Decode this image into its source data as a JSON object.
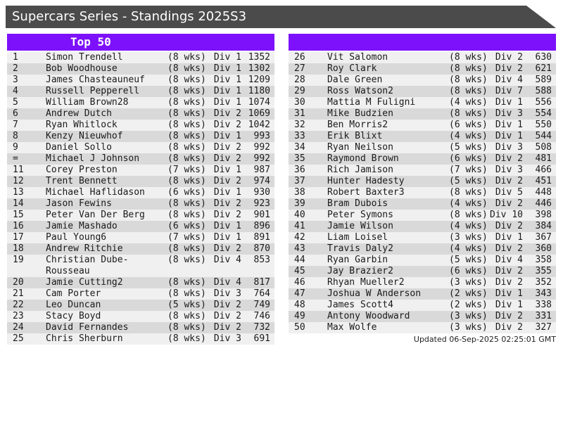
{
  "title_bar": {
    "title": "Supercars Series - Standings 2025S3"
  },
  "panels": {
    "left": {
      "header_label": "Top 50",
      "rows": [
        {
          "rank": "1",
          "name": "Simon Trendell",
          "weeks": "(8 wks)",
          "division": "Div 1",
          "points": "1352"
        },
        {
          "rank": "2",
          "name": "Bob Woodhouse",
          "weeks": "(8 wks)",
          "division": "Div 1",
          "points": "1302"
        },
        {
          "rank": "3",
          "name": "James Chasteauneuf",
          "weeks": "(8 wks)",
          "division": "Div 1",
          "points": "1209"
        },
        {
          "rank": "4",
          "name": "Russell Pepperell",
          "weeks": "(8 wks)",
          "division": "Div 1",
          "points": "1180"
        },
        {
          "rank": "5",
          "name": "William Brown28",
          "weeks": "(8 wks)",
          "division": "Div 1",
          "points": "1074"
        },
        {
          "rank": "6",
          "name": "Andrew Dutch",
          "weeks": "(8 wks)",
          "division": "Div 2",
          "points": "1069"
        },
        {
          "rank": "7",
          "name": "Ryan Whitlock",
          "weeks": "(8 wks)",
          "division": "Div 2",
          "points": "1042"
        },
        {
          "rank": "8",
          "name": "Kenzy Nieuwhof",
          "weeks": "(8 wks)",
          "division": "Div 1",
          "points": "993"
        },
        {
          "rank": "9",
          "name": "Daniel Sollo",
          "weeks": "(8 wks)",
          "division": "Div 2",
          "points": "992"
        },
        {
          "rank": "=",
          "name": "Michael J Johnson",
          "weeks": "(8 wks)",
          "division": "Div 2",
          "points": "992"
        },
        {
          "rank": "11",
          "name": "Corey Preston",
          "weeks": "(7 wks)",
          "division": "Div 1",
          "points": "987"
        },
        {
          "rank": "12",
          "name": "Trent Bennett",
          "weeks": "(8 wks)",
          "division": "Div 2",
          "points": "974"
        },
        {
          "rank": "13",
          "name": "Michael Haflidason",
          "weeks": "(6 wks)",
          "division": "Div 1",
          "points": "930"
        },
        {
          "rank": "14",
          "name": "Jason Fewins",
          "weeks": "(8 wks)",
          "division": "Div 2",
          "points": "923"
        },
        {
          "rank": "15",
          "name": "Peter Van Der Berg",
          "weeks": "(8 wks)",
          "division": "Div 2",
          "points": "901"
        },
        {
          "rank": "16",
          "name": "Jamie Mashado",
          "weeks": "(6 wks)",
          "division": "Div 1",
          "points": "896"
        },
        {
          "rank": "17",
          "name": "Paul Young6",
          "weeks": "(7 wks)",
          "division": "Div 1",
          "points": "891"
        },
        {
          "rank": "18",
          "name": "Andrew Ritchie",
          "weeks": "(8 wks)",
          "division": "Div 2",
          "points": "870"
        },
        {
          "rank": "19",
          "name": "Christian Dube-Rousseau",
          "weeks": "(8 wks)",
          "division": "Div 4",
          "points": "853"
        },
        {
          "rank": "20",
          "name": "Jamie Cutting2",
          "weeks": "(8 wks)",
          "division": "Div 4",
          "points": "817"
        },
        {
          "rank": "21",
          "name": "Cam Porter",
          "weeks": "(8 wks)",
          "division": "Div 3",
          "points": "764"
        },
        {
          "rank": "22",
          "name": "Leo Duncan",
          "weeks": "(5 wks)",
          "division": "Div 2",
          "points": "749"
        },
        {
          "rank": "23",
          "name": "Stacy Boyd",
          "weeks": "(8 wks)",
          "division": "Div 2",
          "points": "746"
        },
        {
          "rank": "24",
          "name": "David Fernandes",
          "weeks": "(8 wks)",
          "division": "Div 2",
          "points": "732"
        },
        {
          "rank": "25",
          "name": "Chris Sherburn",
          "weeks": "(8 wks)",
          "division": "Div 3",
          "points": "691"
        }
      ]
    },
    "right": {
      "header_label": "",
      "rows": [
        {
          "rank": "26",
          "name": "Vit Salomon",
          "weeks": "(8 wks)",
          "division": "Div 2",
          "points": "630"
        },
        {
          "rank": "27",
          "name": "Roy Clark",
          "weeks": "(8 wks)",
          "division": "Div 2",
          "points": "621"
        },
        {
          "rank": "28",
          "name": "Dale Green",
          "weeks": "(8 wks)",
          "division": "Div 4",
          "points": "589"
        },
        {
          "rank": "29",
          "name": "Ross Watson2",
          "weeks": "(8 wks)",
          "division": "Div 7",
          "points": "588"
        },
        {
          "rank": "30",
          "name": "Mattia M Fuligni",
          "weeks": "(4 wks)",
          "division": "Div 1",
          "points": "556"
        },
        {
          "rank": "31",
          "name": "Mike Budzien",
          "weeks": "(8 wks)",
          "division": "Div 3",
          "points": "554"
        },
        {
          "rank": "32",
          "name": "Ben Morris2",
          "weeks": "(6 wks)",
          "division": "Div 1",
          "points": "550"
        },
        {
          "rank": "33",
          "name": "Erik Blixt",
          "weeks": "(4 wks)",
          "division": "Div 1",
          "points": "544"
        },
        {
          "rank": "34",
          "name": "Ryan Neilson",
          "weeks": "(5 wks)",
          "division": "Div 3",
          "points": "508"
        },
        {
          "rank": "35",
          "name": "Raymond Brown",
          "weeks": "(6 wks)",
          "division": "Div 2",
          "points": "481"
        },
        {
          "rank": "36",
          "name": "Rich Jamison",
          "weeks": "(7 wks)",
          "division": "Div 3",
          "points": "466"
        },
        {
          "rank": "37",
          "name": "Hunter Hadesty",
          "weeks": "(5 wks)",
          "division": "Div 2",
          "points": "451"
        },
        {
          "rank": "38",
          "name": "Robert Baxter3",
          "weeks": "(8 wks)",
          "division": "Div 5",
          "points": "448"
        },
        {
          "rank": "39",
          "name": "Bram Dubois",
          "weeks": "(4 wks)",
          "division": "Div 2",
          "points": "446"
        },
        {
          "rank": "40",
          "name": "Peter Symons",
          "weeks": "(8 wks)",
          "division": "Div 10",
          "points": "398"
        },
        {
          "rank": "41",
          "name": "Jamie Wilson",
          "weeks": "(4 wks)",
          "division": "Div 2",
          "points": "384"
        },
        {
          "rank": "42",
          "name": "Liam Loisel",
          "weeks": "(3 wks)",
          "division": "Div 1",
          "points": "367"
        },
        {
          "rank": "43",
          "name": "Travis Daly2",
          "weeks": "(4 wks)",
          "division": "Div 2",
          "points": "360"
        },
        {
          "rank": "44",
          "name": "Ryan Garbin",
          "weeks": "(5 wks)",
          "division": "Div 4",
          "points": "358"
        },
        {
          "rank": "45",
          "name": "Jay Brazier2",
          "weeks": "(6 wks)",
          "division": "Div 2",
          "points": "355"
        },
        {
          "rank": "46",
          "name": "Rhyan Mueller2",
          "weeks": "(3 wks)",
          "division": "Div 2",
          "points": "352"
        },
        {
          "rank": "47",
          "name": "Joshua W Anderson",
          "weeks": "(2 wks)",
          "division": "Div 1",
          "points": "343"
        },
        {
          "rank": "48",
          "name": "James Scott4",
          "weeks": "(2 wks)",
          "division": "Div 1",
          "points": "338"
        },
        {
          "rank": "49",
          "name": "Antony Woodward",
          "weeks": "(3 wks)",
          "division": "Div 2",
          "points": "331"
        },
        {
          "rank": "50",
          "name": "Max Wolfe",
          "weeks": "(3 wks)",
          "division": "Div 2",
          "points": "327"
        }
      ]
    }
  },
  "footer": {
    "updated_text": "Updated 06-Sep-2025 02:25:01 GMT"
  },
  "colors": {
    "accent": "#7D11FB",
    "banner_bg": "#4B4B4B",
    "row_light": "#F0F0F0",
    "row_dark": "#D9D9D9"
  }
}
